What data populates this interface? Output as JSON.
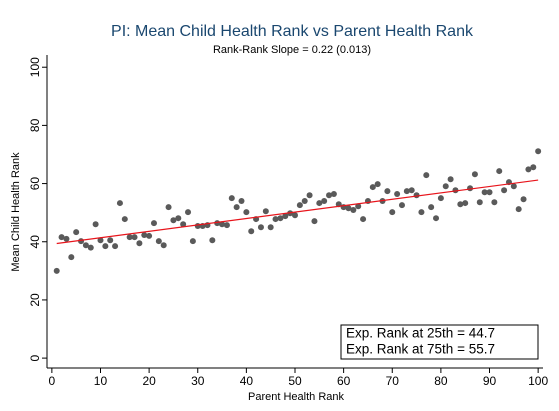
{
  "chart_data": {
    "type": "scatter",
    "title": "PI: Mean Child Health Rank vs Parent Health Rank",
    "subtitle": "Rank-Rank Slope = 0.22 (0.013)",
    "x_label": "Parent Health Rank",
    "y_label": "Mean Child Health Rank",
    "x": [
      1,
      2,
      3,
      4,
      5,
      6,
      7,
      8,
      9,
      10,
      11,
      12,
      13,
      14,
      15,
      16,
      17,
      18,
      19,
      20,
      21,
      22,
      23,
      24,
      25,
      26,
      27,
      28,
      29,
      30,
      31,
      32,
      33,
      34,
      35,
      36,
      37,
      38,
      39,
      40,
      41,
      42,
      43,
      44,
      45,
      46,
      47,
      48,
      49,
      50,
      51,
      52,
      53,
      54,
      55,
      56,
      57,
      58,
      59,
      60,
      61,
      62,
      63,
      64,
      65,
      66,
      67,
      68,
      69,
      70,
      71,
      72,
      73,
      74,
      75,
      76,
      77,
      78,
      79,
      80,
      81,
      82,
      83,
      84,
      85,
      86,
      87,
      88,
      89,
      90,
      91,
      92,
      93,
      94,
      95,
      96,
      97,
      98,
      99,
      100
    ],
    "values": [
      30,
      41.6,
      41,
      34.7,
      43.3,
      40.2,
      38.8,
      38,
      46,
      40.5,
      38.5,
      40.5,
      38.5,
      53.3,
      47.8,
      41.6,
      41.6,
      39.5,
      42.3,
      42,
      46.4,
      40.2,
      38.8,
      51.9,
      47.4,
      48.1,
      46,
      50.2,
      40.2,
      45.4,
      45.4,
      45.7,
      40.5,
      46.4,
      46,
      45.7,
      55,
      51.9,
      54,
      50.2,
      43.6,
      47.8,
      45,
      50.5,
      45,
      47.8,
      48.1,
      48.8,
      49.8,
      49.1,
      52.6,
      54,
      56,
      47.1,
      53.3,
      54,
      56,
      56.4,
      52.9,
      51.9,
      51.5,
      50.9,
      52.2,
      47.8,
      54,
      58.8,
      59.8,
      54,
      57.4,
      50.2,
      56.4,
      52.6,
      57.4,
      57.7,
      56,
      50.2,
      62.9,
      51.9,
      48.1,
      55,
      59.1,
      61.5,
      57.7,
      52.9,
      53.3,
      58.4,
      63.2,
      53.6,
      57,
      57,
      53.6,
      64.3,
      57.7,
      60.5,
      59.1,
      51.2,
      54.6,
      64.9,
      65.6,
      71.1
    ],
    "color": "#5a5a5a",
    "fit_line": {
      "x": [
        1,
        100
      ],
      "y": [
        39.4,
        61.2
      ],
      "color": "#e8141b"
    },
    "annotations": [
      "Exp. Rank at 25th = 44.7",
      "Exp. Rank at 75th = 55.7"
    ],
    "xlim": [
      -1,
      101
    ],
    "ylim": [
      -3.4,
      104.2
    ],
    "xticks": [
      0,
      10,
      20,
      30,
      40,
      50,
      60,
      70,
      80,
      90,
      100
    ],
    "yticks": [
      0,
      20,
      40,
      60,
      80,
      100
    ]
  }
}
